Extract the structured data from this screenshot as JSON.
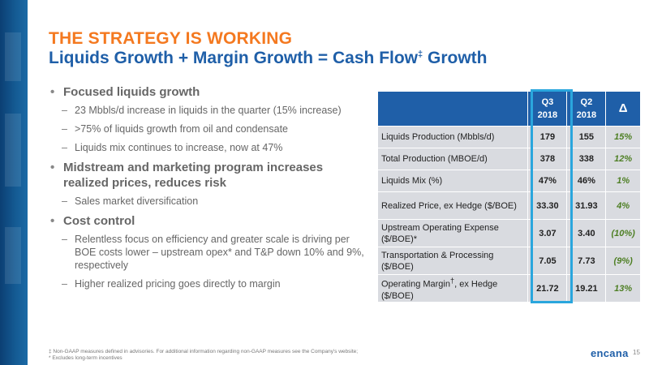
{
  "title": {
    "line1": "THE STRATEGY IS WORKING",
    "line2": "Liquids Growth + Margin Growth = Cash Flow",
    "line2_sup": "‡",
    "line2_end": " Growth"
  },
  "bullets": [
    {
      "text": "Focused liquids growth",
      "subs": [
        "23 Mbbls/d increase in liquids in the quarter (15% increase)",
        ">75% of liquids growth from oil and condensate",
        "Liquids mix continues to increase, now at 47%"
      ]
    },
    {
      "text": "Midstream and marketing program increases realized prices, reduces risk",
      "subs": [
        "Sales market diversification"
      ]
    },
    {
      "text": "Cost control",
      "subs": [
        "Relentless focus on efficiency and greater scale is driving per BOE costs lower – upstream opex* and T&P down 10% and 9%, respectively",
        "Higher realized pricing goes directly to margin"
      ]
    }
  ],
  "table": {
    "headers": {
      "q3_line1": "Q3",
      "q3_line2": "2018",
      "q2_line1": "Q2",
      "q2_line2": "2018",
      "delta": "Δ"
    },
    "rows": [
      {
        "label": "Liquids Production (Mbbls/d)",
        "q3": "179",
        "q2": "155",
        "delta": "15%"
      },
      {
        "label": "Total Production (MBOE/d)",
        "q3": "378",
        "q2": "338",
        "delta": "12%"
      },
      {
        "label": "Liquids Mix (%)",
        "q3": "47%",
        "q2": "46%",
        "delta": "1%"
      },
      {
        "label": "Realized Price, ex Hedge ($/BOE)",
        "q3": "33.30",
        "q2": "31.93",
        "delta": "4%"
      },
      {
        "label": "Upstream Operating Expense ($/BOE)*",
        "q3": "3.07",
        "q2": "3.40",
        "delta": "(10%)"
      },
      {
        "label": "Transportation & Processing ($/BOE)",
        "q3": "7.05",
        "q2": "7.73",
        "delta": "(9%)"
      },
      {
        "label": "Operating Margin",
        "label_sup": "†",
        "label_end": ", ex Hedge ($/BOE)",
        "q3": "21.72",
        "q2": "19.21",
        "delta": "13%"
      }
    ]
  },
  "footnotes": {
    "line1": "‡ Non-GAAP measures defined in advisories. For additional information regarding non-GAAP measures see the Company's website;",
    "line2": "* Excludes long-term incentives"
  },
  "logo": "encana",
  "page_number": "15",
  "colors": {
    "accent_orange": "#f47920",
    "brand_blue": "#1f5fa8",
    "highlight_cyan": "#2aa6dd",
    "delta_green": "#4e7f24"
  }
}
